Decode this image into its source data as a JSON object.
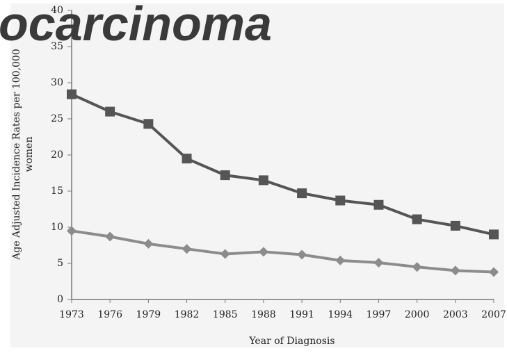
{
  "chart_data": {
    "type": "line",
    "title": "ocarcinoma",
    "ylabel": [
      "Age Adjusted Incidence Rates per 100,000",
      "women"
    ],
    "xlabel": "Year of Diagnosis",
    "categories": [
      "1973",
      "1976",
      "1979",
      "1982",
      "1985",
      "1988",
      "1991",
      "1994",
      "1997",
      "2000",
      "2003",
      "2007"
    ],
    "series": [
      {
        "color": "#555555",
        "marker": "square",
        "values": [
          28.4,
          26.0,
          24.3,
          19.5,
          17.2,
          16.5,
          14.7,
          13.7,
          13.1,
          11.1,
          10.2,
          9.0
        ]
      },
      {
        "color": "#8c8c8c",
        "marker": "diamond",
        "values": [
          9.5,
          8.7,
          7.7,
          7.0,
          6.3,
          6.6,
          6.2,
          5.4,
          5.1,
          4.5,
          4.0,
          3.8
        ]
      }
    ],
    "ylim": [
      0,
      40
    ],
    "yticks": [
      0,
      5,
      10,
      15,
      20,
      25,
      30,
      35,
      40
    ],
    "grid": false
  }
}
